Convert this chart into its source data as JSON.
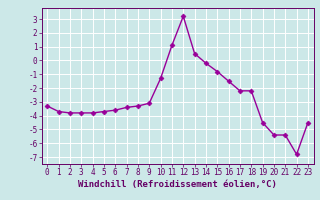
{
  "x": [
    0,
    1,
    2,
    3,
    4,
    5,
    6,
    7,
    8,
    9,
    10,
    11,
    12,
    13,
    14,
    15,
    16,
    17,
    18,
    19,
    20,
    21,
    22,
    23
  ],
  "y": [
    -3.3,
    -3.7,
    -3.8,
    -3.8,
    -3.8,
    -3.7,
    -3.6,
    -3.4,
    -3.3,
    -3.1,
    -1.3,
    1.1,
    3.2,
    0.5,
    -0.2,
    -0.8,
    -1.5,
    -2.2,
    -2.2,
    -4.5,
    -5.4,
    -5.4,
    -6.8,
    -4.5
  ],
  "line_color": "#990099",
  "marker": "D",
  "markersize": 2.5,
  "linewidth": 1.0,
  "xlabel": "Windchill (Refroidissement éolien,°C)",
  "xlabel_fontsize": 6.5,
  "xlim": [
    -0.5,
    23.5
  ],
  "ylim": [
    -7.5,
    3.8
  ],
  "yticks": [
    -7,
    -6,
    -5,
    -4,
    -3,
    -2,
    -1,
    0,
    1,
    2,
    3
  ],
  "xticks": [
    0,
    1,
    2,
    3,
    4,
    5,
    6,
    7,
    8,
    9,
    10,
    11,
    12,
    13,
    14,
    15,
    16,
    17,
    18,
    19,
    20,
    21,
    22,
    23
  ],
  "tick_fontsize": 5.5,
  "bg_color": "#cce8e8",
  "grid_color": "#ffffff",
  "spine_color": "#660066",
  "tick_color": "#660066",
  "label_color": "#660066"
}
